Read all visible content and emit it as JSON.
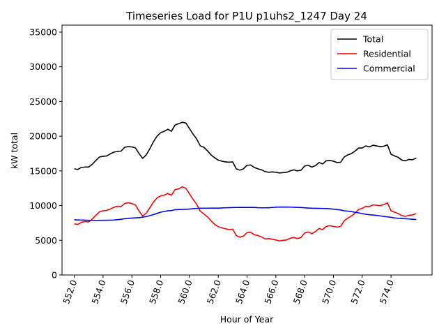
{
  "chart_data": {
    "type": "line",
    "title": "Timeseries Load for P1U p1uhs2_1247  Day 24",
    "xlabel": "Hour of Year",
    "ylabel": "kW total",
    "xlim": [
      551.15,
      576.85
    ],
    "ylim": [
      0,
      36000
    ],
    "xticks": [
      552,
      554,
      556,
      558,
      560,
      562,
      564,
      566,
      568,
      570,
      572,
      574
    ],
    "xtick_labels": [
      "552.0",
      "554.0",
      "556.0",
      "558.0",
      "560.0",
      "562.0",
      "564.0",
      "566.0",
      "568.0",
      "570.0",
      "572.0",
      "574.0"
    ],
    "yticks": [
      0,
      5000,
      10000,
      15000,
      20000,
      25000,
      30000,
      35000
    ],
    "ytick_labels": [
      "0",
      "5000",
      "10000",
      "15000",
      "20000",
      "25000",
      "30000",
      "35000"
    ],
    "legend_position": "top-right",
    "x": [
      552.0,
      552.25,
      552.5,
      552.75,
      553.0,
      553.25,
      553.5,
      553.75,
      554.0,
      554.25,
      554.5,
      554.75,
      555.0,
      555.25,
      555.5,
      555.75,
      556.0,
      556.25,
      556.5,
      556.75,
      557.0,
      557.25,
      557.5,
      557.75,
      558.0,
      558.25,
      558.5,
      558.75,
      559.0,
      559.25,
      559.5,
      559.75,
      560.0,
      560.25,
      560.5,
      560.75,
      561.0,
      561.25,
      561.5,
      561.75,
      562.0,
      562.25,
      562.5,
      562.75,
      563.0,
      563.25,
      563.5,
      563.75,
      564.0,
      564.25,
      564.5,
      564.75,
      565.0,
      565.25,
      565.5,
      565.75,
      566.0,
      566.25,
      566.5,
      566.75,
      567.0,
      567.25,
      567.5,
      567.75,
      568.0,
      568.25,
      568.5,
      568.75,
      569.0,
      569.25,
      569.5,
      569.75,
      570.0,
      570.25,
      570.5,
      570.75,
      571.0,
      571.25,
      571.5,
      571.75,
      572.0,
      572.25,
      572.5,
      572.75,
      573.0,
      573.25,
      573.5,
      573.75,
      574.0,
      574.25,
      574.5,
      574.75,
      575.0,
      575.25,
      575.5,
      575.75
    ],
    "series": [
      {
        "name": "Total",
        "color": "#000000",
        "values": [
          15300,
          15200,
          15500,
          15550,
          15550,
          15950,
          16500,
          17000,
          17100,
          17150,
          17450,
          17700,
          17800,
          17850,
          18400,
          18500,
          18450,
          18300,
          17500,
          16800,
          17300,
          18200,
          19200,
          20000,
          20500,
          20700,
          21000,
          20700,
          21600,
          21800,
          22000,
          21900,
          21100,
          20300,
          19600,
          18600,
          18400,
          17900,
          17300,
          16900,
          16550,
          16400,
          16300,
          16250,
          16300,
          15300,
          15100,
          15300,
          15800,
          15850,
          15500,
          15300,
          15150,
          14900,
          14800,
          14850,
          14800,
          14700,
          14750,
          14800,
          15000,
          15150,
          15000,
          15100,
          15700,
          15800,
          15550,
          15750,
          16200,
          16000,
          16450,
          16500,
          16400,
          16200,
          16250,
          17000,
          17300,
          17500,
          17850,
          18300,
          18300,
          18600,
          18450,
          18700,
          18600,
          18500,
          18550,
          18750,
          17400,
          17150,
          16950,
          16550,
          16450,
          16650,
          16600,
          16850
        ]
      },
      {
        "name": "Residential",
        "color": "#ff0000",
        "values": [
          7350,
          7300,
          7600,
          7700,
          7650,
          8050,
          8600,
          9100,
          9250,
          9300,
          9500,
          9750,
          9900,
          9850,
          10300,
          10400,
          10300,
          10100,
          9200,
          8500,
          8900,
          9700,
          10500,
          11100,
          11400,
          11500,
          11750,
          11500,
          12300,
          12400,
          12700,
          12500,
          11700,
          10900,
          10200,
          9200,
          8800,
          8400,
          7800,
          7300,
          6950,
          6800,
          6650,
          6550,
          6600,
          5700,
          5450,
          5600,
          6100,
          6150,
          5800,
          5700,
          5500,
          5200,
          5250,
          5150,
          5050,
          4900,
          5000,
          5050,
          5300,
          5400,
          5250,
          5400,
          6050,
          6200,
          5950,
          6250,
          6700,
          6550,
          7000,
          7100,
          7000,
          6900,
          7000,
          7800,
          8200,
          8500,
          8900,
          9450,
          9600,
          9900,
          9850,
          10100,
          10050,
          10000,
          10150,
          10400,
          9250,
          9050,
          8850,
          8550,
          8450,
          8600,
          8650,
          8850
        ]
      },
      {
        "name": "Commercial",
        "color": "#0000ff",
        "values": [
          7950,
          7930,
          7910,
          7900,
          7880,
          7870,
          7870,
          7880,
          7880,
          7890,
          7900,
          7920,
          7960,
          8030,
          8100,
          8150,
          8200,
          8230,
          8260,
          8330,
          8420,
          8550,
          8700,
          8880,
          9050,
          9150,
          9250,
          9280,
          9400,
          9430,
          9450,
          9470,
          9500,
          9550,
          9600,
          9620,
          9620,
          9630,
          9640,
          9640,
          9640,
          9660,
          9680,
          9700,
          9720,
          9730,
          9740,
          9740,
          9740,
          9740,
          9740,
          9700,
          9680,
          9680,
          9690,
          9730,
          9770,
          9790,
          9790,
          9790,
          9780,
          9760,
          9740,
          9720,
          9690,
          9650,
          9620,
          9610,
          9600,
          9590,
          9570,
          9530,
          9480,
          9430,
          9370,
          9240,
          9200,
          9130,
          9030,
          8950,
          8850,
          8750,
          8680,
          8640,
          8580,
          8510,
          8440,
          8370,
          8300,
          8220,
          8170,
          8140,
          8100,
          8070,
          8030,
          8000
        ]
      }
    ]
  }
}
